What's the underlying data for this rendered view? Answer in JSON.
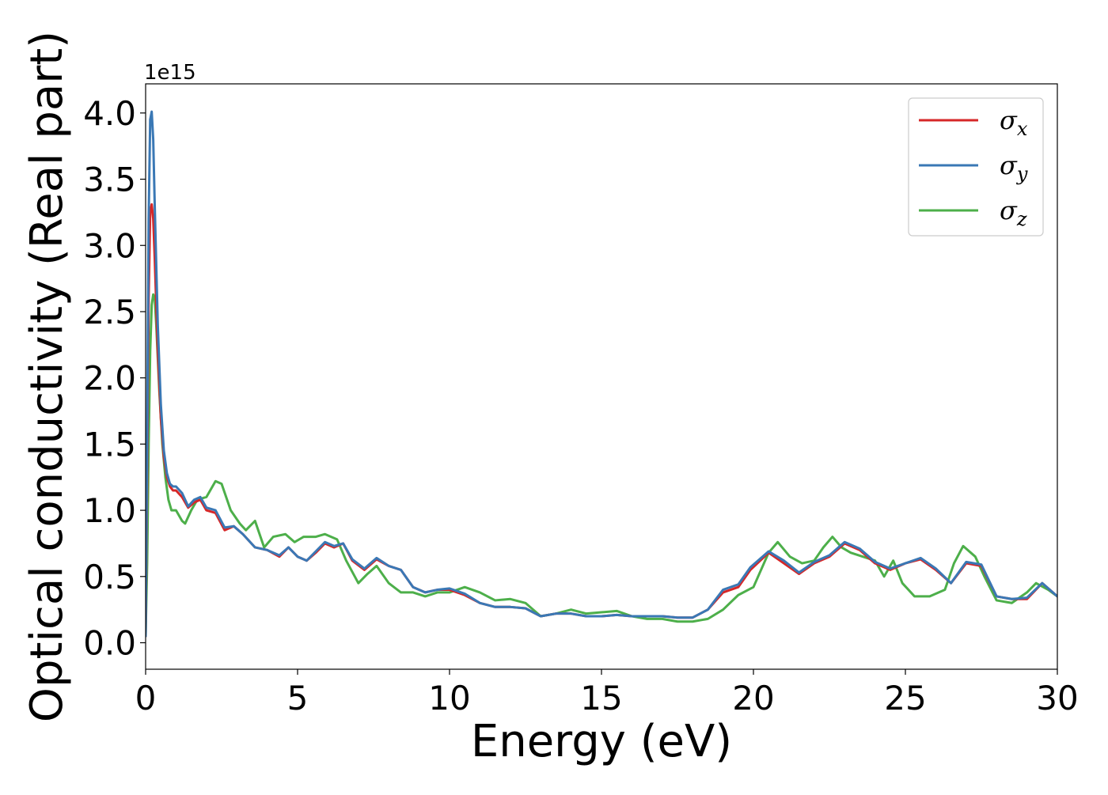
{
  "chart_data": {
    "type": "line",
    "xlabel": "Energy (eV)",
    "ylabel": "Optical conductivity (Real part)",
    "offset_text": "1e15",
    "xlim": [
      0,
      30
    ],
    "ylim": [
      -0.2,
      4.22
    ],
    "xticks": [
      0,
      5,
      10,
      15,
      20,
      25,
      30
    ],
    "xtick_labels": [
      "0",
      "5",
      "10",
      "15",
      "20",
      "25",
      "30"
    ],
    "yticks": [
      0.0,
      0.5,
      1.0,
      1.5,
      2.0,
      2.5,
      3.0,
      3.5,
      4.0
    ],
    "ytick_labels": [
      "0.0",
      "0.5",
      "1.0",
      "1.5",
      "2.0",
      "2.5",
      "3.0",
      "3.5",
      "4.0"
    ],
    "grid": false,
    "legend_position": "top-right",
    "series": [
      {
        "name": "σx",
        "legend_base": "σ",
        "legend_sub": "x",
        "color": "#d62728",
        "x": [
          0,
          0.05,
          0.1,
          0.15,
          0.2,
          0.25,
          0.3,
          0.4,
          0.5,
          0.6,
          0.7,
          0.8,
          0.9,
          1.0,
          1.2,
          1.4,
          1.6,
          1.8,
          2.0,
          2.3,
          2.6,
          2.9,
          3.2,
          3.6,
          4.0,
          4.4,
          4.7,
          5.0,
          5.3,
          5.6,
          5.9,
          6.2,
          6.5,
          6.8,
          7.2,
          7.6,
          8.0,
          8.4,
          8.8,
          9.2,
          9.6,
          10.0,
          10.5,
          11.0,
          11.5,
          12.0,
          12.5,
          13.0,
          13.5,
          14.0,
          14.5,
          15.0,
          15.5,
          16.0,
          16.5,
          17.0,
          17.5,
          18.0,
          18.5,
          19.0,
          19.5,
          19.9,
          20.5,
          21.0,
          21.5,
          22.0,
          22.5,
          23.0,
          23.5,
          24.0,
          24.5,
          25.0,
          25.5,
          26.0,
          26.5,
          27.0,
          27.5,
          28.0,
          28.5,
          29.0,
          29.5,
          30.0
        ],
        "values": [
          0.05,
          1.2,
          2.6,
          3.25,
          3.31,
          3.2,
          2.9,
          2.2,
          1.7,
          1.4,
          1.25,
          1.18,
          1.15,
          1.15,
          1.1,
          1.02,
          1.06,
          1.08,
          1.0,
          0.98,
          0.85,
          0.88,
          0.82,
          0.72,
          0.7,
          0.65,
          0.72,
          0.65,
          0.62,
          0.68,
          0.75,
          0.72,
          0.75,
          0.62,
          0.55,
          0.63,
          0.58,
          0.55,
          0.42,
          0.38,
          0.4,
          0.4,
          0.36,
          0.3,
          0.27,
          0.27,
          0.26,
          0.2,
          0.22,
          0.22,
          0.2,
          0.2,
          0.21,
          0.2,
          0.2,
          0.2,
          0.19,
          0.19,
          0.25,
          0.38,
          0.42,
          0.55,
          0.68,
          0.6,
          0.52,
          0.6,
          0.65,
          0.75,
          0.7,
          0.6,
          0.55,
          0.6,
          0.63,
          0.55,
          0.45,
          0.6,
          0.58,
          0.35,
          0.33,
          0.33,
          0.45,
          0.35
        ]
      },
      {
        "name": "σy",
        "legend_base": "σ",
        "legend_sub": "y",
        "color": "#3a78b5",
        "x": [
          0,
          0.05,
          0.1,
          0.15,
          0.2,
          0.25,
          0.3,
          0.4,
          0.5,
          0.6,
          0.7,
          0.8,
          0.9,
          1.0,
          1.2,
          1.4,
          1.6,
          1.8,
          2.0,
          2.3,
          2.6,
          2.9,
          3.2,
          3.6,
          4.0,
          4.4,
          4.7,
          5.0,
          5.3,
          5.6,
          5.9,
          6.2,
          6.5,
          6.8,
          7.2,
          7.6,
          8.0,
          8.4,
          8.8,
          9.2,
          9.6,
          10.0,
          10.5,
          11.0,
          11.5,
          12.0,
          12.5,
          13.0,
          13.5,
          14.0,
          14.5,
          15.0,
          15.5,
          16.0,
          16.5,
          17.0,
          17.5,
          18.0,
          18.5,
          19.0,
          19.5,
          19.9,
          20.5,
          21.0,
          21.5,
          22.0,
          22.5,
          23.0,
          23.5,
          24.0,
          24.5,
          25.0,
          25.5,
          26.0,
          26.5,
          27.0,
          27.5,
          28.0,
          28.5,
          29.0,
          29.5,
          30.0
        ],
        "values": [
          0.05,
          1.5,
          3.2,
          3.95,
          4.01,
          3.8,
          3.3,
          2.4,
          1.8,
          1.45,
          1.28,
          1.2,
          1.18,
          1.18,
          1.13,
          1.03,
          1.08,
          1.1,
          1.02,
          1.0,
          0.87,
          0.88,
          0.82,
          0.72,
          0.7,
          0.66,
          0.72,
          0.65,
          0.62,
          0.69,
          0.76,
          0.73,
          0.75,
          0.63,
          0.56,
          0.64,
          0.58,
          0.55,
          0.42,
          0.38,
          0.4,
          0.41,
          0.37,
          0.3,
          0.27,
          0.27,
          0.26,
          0.2,
          0.22,
          0.22,
          0.2,
          0.2,
          0.21,
          0.2,
          0.2,
          0.2,
          0.19,
          0.19,
          0.25,
          0.4,
          0.44,
          0.57,
          0.69,
          0.62,
          0.53,
          0.61,
          0.66,
          0.76,
          0.71,
          0.61,
          0.56,
          0.6,
          0.64,
          0.56,
          0.45,
          0.61,
          0.59,
          0.35,
          0.33,
          0.34,
          0.45,
          0.35
        ]
      },
      {
        "name": "σz",
        "legend_base": "σ",
        "legend_sub": "z",
        "color": "#4daf4a",
        "x": [
          0,
          0.05,
          0.1,
          0.15,
          0.2,
          0.25,
          0.3,
          0.35,
          0.45,
          0.55,
          0.65,
          0.75,
          0.85,
          1.0,
          1.2,
          1.3,
          1.5,
          1.7,
          2.0,
          2.3,
          2.5,
          2.8,
          3.1,
          3.3,
          3.6,
          3.9,
          4.2,
          4.6,
          4.9,
          5.2,
          5.6,
          5.9,
          6.3,
          6.6,
          7.0,
          7.3,
          7.6,
          8.0,
          8.4,
          8.8,
          9.2,
          9.6,
          10.0,
          10.5,
          11.0,
          11.5,
          12.0,
          12.5,
          13.0,
          13.5,
          14.0,
          14.5,
          15.0,
          15.5,
          16.0,
          16.5,
          17.0,
          17.5,
          18.0,
          18.5,
          19.0,
          19.5,
          20.0,
          20.5,
          20.8,
          21.2,
          21.6,
          22.0,
          22.3,
          22.6,
          22.9,
          23.2,
          23.6,
          24.0,
          24.3,
          24.6,
          24.9,
          25.3,
          25.8,
          26.3,
          26.6,
          26.9,
          27.3,
          27.6,
          28.0,
          28.5,
          29.0,
          29.3,
          29.7,
          30.0
        ],
        "values": [
          0.05,
          0.6,
          1.5,
          2.2,
          2.55,
          2.63,
          2.6,
          2.4,
          1.9,
          1.5,
          1.25,
          1.08,
          1.0,
          1.0,
          0.92,
          0.9,
          1.0,
          1.08,
          1.1,
          1.22,
          1.2,
          1.0,
          0.9,
          0.85,
          0.92,
          0.72,
          0.8,
          0.82,
          0.76,
          0.8,
          0.8,
          0.82,
          0.78,
          0.62,
          0.45,
          0.52,
          0.58,
          0.45,
          0.38,
          0.38,
          0.35,
          0.38,
          0.38,
          0.42,
          0.38,
          0.32,
          0.33,
          0.3,
          0.2,
          0.22,
          0.25,
          0.22,
          0.23,
          0.24,
          0.2,
          0.18,
          0.18,
          0.16,
          0.16,
          0.18,
          0.25,
          0.36,
          0.42,
          0.68,
          0.76,
          0.65,
          0.6,
          0.62,
          0.72,
          0.8,
          0.72,
          0.68,
          0.65,
          0.62,
          0.5,
          0.62,
          0.45,
          0.35,
          0.35,
          0.4,
          0.6,
          0.73,
          0.65,
          0.5,
          0.32,
          0.3,
          0.38,
          0.45,
          0.4,
          0.35
        ]
      }
    ]
  }
}
